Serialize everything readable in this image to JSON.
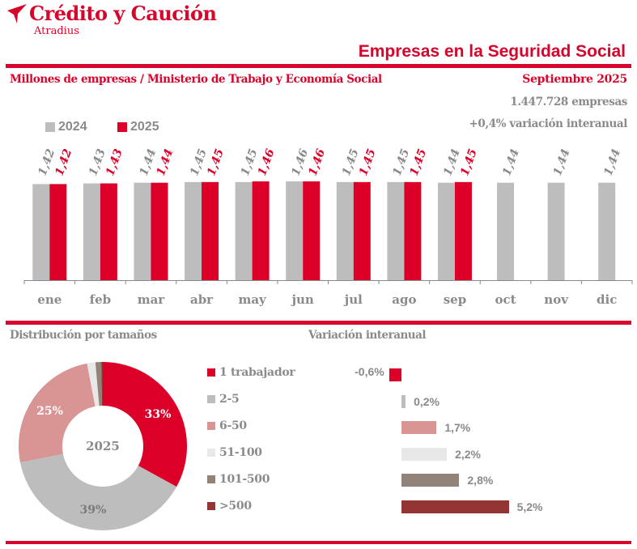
{
  "header": {
    "brand": "Crédito y Caución",
    "brand_sub": "Atradius",
    "title": "Empresas en la Seguridad Social",
    "subtitle": "Millones de empresas / Ministerio de Trabajo y Economía Social",
    "date": "Septiembre 2025",
    "total": "1.447.728 empresas",
    "variation": "+0,4% variación interanual"
  },
  "colors": {
    "brand_red": "#d7042b",
    "gray_2024": "#bdbdbd",
    "red_2025": "#dc0028",
    "text_gray": "#8a8a8a"
  },
  "chart_data": [
    {
      "type": "bar",
      "title": "Empresas en la Seguridad Social",
      "ylabel": "Millones de empresas",
      "xlabel": "",
      "categories": [
        "ene",
        "feb",
        "mar",
        "abr",
        "may",
        "jun",
        "jul",
        "ago",
        "sep",
        "oct",
        "nov",
        "dic"
      ],
      "series": [
        {
          "name": "2024",
          "color": "#bdbdbd",
          "values": [
            1.42,
            1.43,
            1.44,
            1.45,
            1.45,
            1.46,
            1.45,
            1.45,
            1.44,
            1.44,
            1.44,
            1.44
          ],
          "labels": [
            "1,42",
            "1,43",
            "1,44",
            "1,45",
            "1,45",
            "1,46",
            "1,45",
            "1,45",
            "1,44",
            "1,44",
            "1,44",
            "1,44"
          ]
        },
        {
          "name": "2025",
          "color": "#dc0028",
          "values": [
            1.42,
            1.43,
            1.44,
            1.45,
            1.46,
            1.46,
            1.45,
            1.45,
            1.45,
            null,
            null,
            null
          ],
          "labels": [
            "1,42",
            "1,43",
            "1,44",
            "1,45",
            "1,46",
            "1,46",
            "1,45",
            "1,45",
            "1,45",
            null,
            null,
            null
          ]
        }
      ],
      "ylim": [
        0,
        1.46
      ],
      "legend": "top-left",
      "grid": false
    },
    {
      "type": "pie",
      "title": "Distribución por tamaños",
      "center_label": "2025",
      "slices": [
        {
          "name": "1 trabajador",
          "value": 33.0,
          "label": "33%",
          "color": "#dc0028",
          "label_color": "#ffffff"
        },
        {
          "name": "2-5",
          "value": 38.9,
          "label": "39%",
          "color": "#bdbdbd",
          "label_color": "#7a7a7a"
        },
        {
          "name": "6-50",
          "value": 25.1,
          "label": "25%",
          "color": "#d99494",
          "label_color": "#ffffff"
        },
        {
          "name": "51-100",
          "value": 1.6,
          "label": "",
          "color": "#e8e8e8"
        },
        {
          "name": "101-500",
          "value": 1.1,
          "label": "",
          "color": "#928379"
        },
        {
          "name": ">500",
          "value": 0.3,
          "label": "",
          "color": "#943535"
        }
      ]
    },
    {
      "type": "bar",
      "orientation": "horizontal",
      "title": "Variación interanual",
      "categories": [
        "1 trabajador",
        "2-5",
        "6-50",
        "51-100",
        "101-500",
        ">500"
      ],
      "values": [
        -0.6,
        0.2,
        1.7,
        2.2,
        2.8,
        5.2
      ],
      "labels": [
        "-0,6%",
        "0,2%",
        "1,7%",
        "2,2%",
        "2,8%",
        "5,2%"
      ],
      "colors": [
        "#dc0028",
        "#bdbdbd",
        "#d99494",
        "#e8e8e8",
        "#928379",
        "#943535"
      ]
    }
  ]
}
